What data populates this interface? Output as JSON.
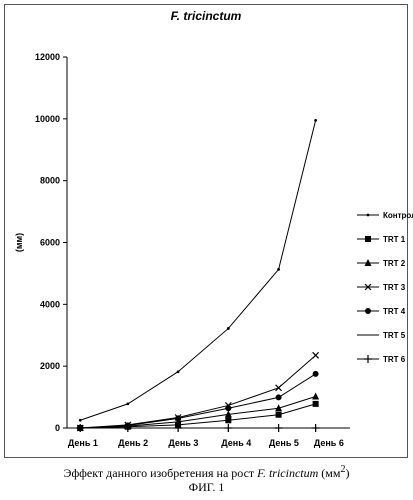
{
  "chart_data": {
    "type": "line",
    "title": "F. tricinctum",
    "ylabel": "(мм)",
    "xlabel": "",
    "categories": [
      "День 1",
      "День 2",
      "День 3",
      "День 4",
      "День 5",
      "День 6"
    ],
    "ylim": [
      0,
      12000
    ],
    "yticks": [
      0,
      2000,
      4000,
      6000,
      8000,
      10000,
      12000
    ],
    "grid": false,
    "legend_position": "right",
    "series": [
      {
        "name": "Контрол",
        "marker": "dot",
        "color": "#000000",
        "x": [
          1,
          1.9,
          2.85,
          3.8,
          4.75,
          5.45
        ],
        "values": [
          250,
          780,
          1820,
          3220,
          5130,
          9950
        ]
      },
      {
        "name": "TRT 1",
        "marker": "square",
        "color": "#000000",
        "x": [
          1,
          1.9,
          2.85,
          3.8,
          4.75,
          5.45
        ],
        "values": [
          0,
          40,
          100,
          250,
          430,
          780
        ]
      },
      {
        "name": "TRT 2",
        "marker": "triangle",
        "color": "#000000",
        "x": [
          1,
          1.9,
          2.85,
          3.8,
          4.75,
          5.45
        ],
        "values": [
          0,
          60,
          200,
          440,
          640,
          1020
        ]
      },
      {
        "name": "TRT 3",
        "marker": "x",
        "color": "#000000",
        "x": [
          1,
          1.9,
          2.85,
          3.8,
          4.75,
          5.45
        ],
        "values": [
          0,
          100,
          340,
          730,
          1300,
          2350
        ]
      },
      {
        "name": "TRT 4",
        "marker": "circle",
        "color": "#000000",
        "x": [
          1,
          1.9,
          2.85,
          3.8,
          4.75,
          5.45
        ],
        "values": [
          0,
          80,
          310,
          640,
          990,
          1750
        ]
      },
      {
        "name": "TRT 5",
        "marker": "none",
        "color": "#000000",
        "x": [
          1,
          1.9,
          2.85,
          3.8,
          4.75,
          5.45
        ],
        "values": [
          0,
          0,
          0,
          0,
          0,
          0
        ]
      },
      {
        "name": "TRT 6",
        "marker": "plus",
        "color": "#000000",
        "x": [
          1,
          1.9,
          2.85,
          3.8,
          4.75,
          5.45
        ],
        "values": [
          0,
          0,
          0,
          0,
          0,
          0
        ]
      }
    ]
  },
  "caption": {
    "text_before": "Эффект данного изобретения на рост ",
    "text_italic": "F. tricinctum",
    "text_after": " (мм",
    "superscript": "2",
    "close": ")"
  },
  "figure_label": "ФИГ. 1"
}
